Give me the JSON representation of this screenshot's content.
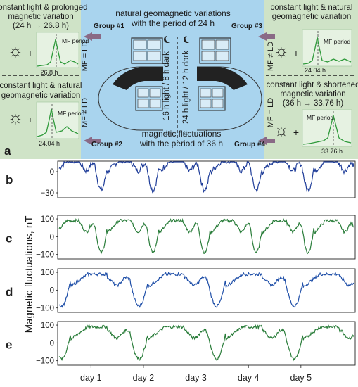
{
  "panel_a": {
    "label": "a",
    "center": {
      "top_title_line1": "natural geomagnetic variations",
      "top_title_line2": "with the period of 24 h",
      "bottom_title_line1": "magnetic fluctuations",
      "bottom_title_line2": "with the period of 36 h",
      "light_regime_1": "16 h light / 8 h dark",
      "light_regime_2": "24 h light / 12 h dark"
    },
    "groups": [
      {
        "id": "g1",
        "label": "Group #1",
        "mf_relation": "MF = LD",
        "title_line1": "constant light & prolonged",
        "title_line2": "magnetic variation",
        "title_line3": "(24 h → 26.8 h)",
        "period_label": "MF period",
        "period_value": "26.8 h"
      },
      {
        "id": "g2",
        "label": "Group #2",
        "mf_relation": "MF ≠ LD",
        "title_line1": "constant light & natural",
        "title_line2": "geomagnetic variation",
        "title_line3": "",
        "period_label": "MF period",
        "period_value": "24.04 h"
      },
      {
        "id": "g3",
        "label": "Group #3",
        "mf_relation": "MF ≠ LD",
        "title_line1": "constant light & natural",
        "title_line2": "geomagnetic variation",
        "title_line3": "",
        "period_label": "MF period",
        "period_value": "24.04 h"
      },
      {
        "id": "g4",
        "label": "Group #4",
        "mf_relation": "MF = LD",
        "title_line1": "constant light & shortened",
        "title_line2": "magnetic variation",
        "title_line3": "(36 h → 33.76 h)",
        "period_label": "MF period",
        "period_value": "33.76 h"
      }
    ],
    "plus": "+",
    "colors": {
      "left_bg": "#cfe3c7",
      "center_bg": "#a9d4ee",
      "spectrum": "#2e9a3a",
      "arrow": "#8a6a86"
    }
  },
  "chart_data": [
    {
      "type": "line",
      "panel": "b",
      "series_color": "#1f3d99",
      "yticks": [
        "0",
        "−30"
      ],
      "ylim": [
        -37,
        15
      ],
      "period_days": 1.0,
      "amplitude": 20,
      "offset": -5
    },
    {
      "type": "line",
      "panel": "c",
      "series_color": "#2a7d3a",
      "yticks": [
        "100",
        "0",
        "−100"
      ],
      "ylim": [
        -125,
        120
      ],
      "period_days": 1.0,
      "amplitude": 100,
      "offset": 0
    },
    {
      "type": "line",
      "panel": "d",
      "series_color": "#1f4fa8",
      "yticks": [
        "100",
        "0",
        "−100"
      ],
      "ylim": [
        -125,
        120
      ],
      "period_days": 1.5,
      "amplitude": 100,
      "offset": 0
    },
    {
      "type": "line",
      "panel": "e",
      "series_color": "#2a7d3a",
      "yticks": [
        "100",
        "0",
        "−100"
      ],
      "ylim": [
        -125,
        120
      ],
      "period_days": 1.5,
      "amplitude": 100,
      "offset": 0
    }
  ],
  "shared_axes": {
    "ylabel": "Magnetic fluctuations, nT",
    "xlabels": [
      "day 1",
      "day 2",
      "day 3",
      "day 4",
      "day 5"
    ]
  }
}
